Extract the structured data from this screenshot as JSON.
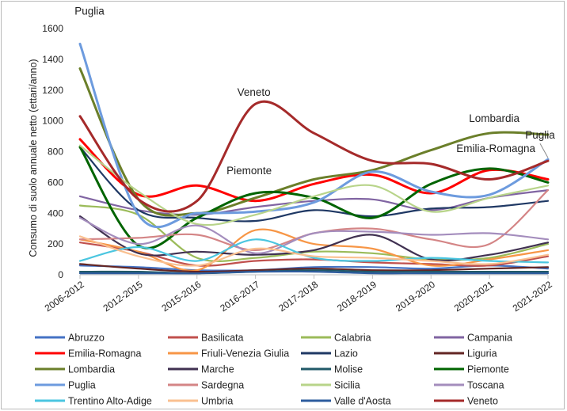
{
  "chart_data": {
    "type": "line",
    "title": "",
    "xlabel": "",
    "ylabel": "Consumo di suolo annuale netto (ettari/anno)",
    "ylim": [
      0,
      1600
    ],
    "yticks": [
      0,
      200,
      400,
      600,
      800,
      1000,
      1200,
      1400,
      1600
    ],
    "grid": false,
    "legend": "bottom",
    "categories": [
      "2006-2012",
      "2012-2015",
      "2015-2016",
      "2016-2017",
      "2017-2018",
      "2018-2019",
      "2019-2020",
      "2020-2021",
      "2021-2022"
    ],
    "series": [
      {
        "name": "Abruzzo",
        "color": "#4472c4",
        "values": [
          60,
          50,
          30,
          30,
          50,
          50,
          40,
          60,
          40
        ]
      },
      {
        "name": "Basilicata",
        "color": "#c0504d",
        "values": [
          210,
          150,
          60,
          90,
          100,
          80,
          70,
          60,
          120
        ]
      },
      {
        "name": "Calabria",
        "color": "#9bbb59",
        "values": [
          450,
          390,
          110,
          110,
          150,
          140,
          100,
          110,
          200
        ]
      },
      {
        "name": "Campania",
        "color": "#8064a2",
        "values": [
          510,
          420,
          390,
          440,
          480,
          490,
          420,
          500,
          550
        ]
      },
      {
        "name": "Emilia-Romagna",
        "color": "#ff0000",
        "values": [
          880,
          520,
          580,
          480,
          590,
          650,
          530,
          680,
          620
        ]
      },
      {
        "name": "Friuli-Venezia Giulia",
        "color": "#f79646",
        "values": [
          230,
          150,
          30,
          290,
          200,
          170,
          60,
          100,
          160
        ]
      },
      {
        "name": "Lazio",
        "color": "#1f3864",
        "values": [
          830,
          420,
          370,
          350,
          420,
          380,
          430,
          440,
          480
        ]
      },
      {
        "name": "Liguria",
        "color": "#632523",
        "values": [
          70,
          40,
          20,
          30,
          40,
          30,
          30,
          40,
          50
        ]
      },
      {
        "name": "Lombardia",
        "color": "#6b7f2a",
        "values": [
          1340,
          490,
          400,
          500,
          620,
          680,
          810,
          920,
          910
        ]
      },
      {
        "name": "Marche",
        "color": "#403151",
        "values": [
          380,
          140,
          150,
          130,
          160,
          260,
          100,
          130,
          210
        ]
      },
      {
        "name": "Molise",
        "color": "#215968",
        "values": [
          20,
          20,
          10,
          20,
          30,
          20,
          20,
          20,
          20
        ]
      },
      {
        "name": "Piemonte",
        "color": "#006400",
        "values": [
          830,
          190,
          370,
          530,
          500,
          370,
          590,
          690,
          600
        ]
      },
      {
        "name": "Puglia",
        "color": "#6d9bde",
        "values": [
          1500,
          390,
          400,
          410,
          470,
          670,
          540,
          520,
          750
        ]
      },
      {
        "name": "Sardegna",
        "color": "#d48586",
        "values": [
          230,
          240,
          260,
          160,
          270,
          300,
          230,
          200,
          550
        ]
      },
      {
        "name": "Sicilia",
        "color": "#b8d48a",
        "values": [
          840,
          540,
          330,
          390,
          510,
          580,
          410,
          500,
          580
        ]
      },
      {
        "name": "Toscana",
        "color": "#a48dbd",
        "values": [
          370,
          200,
          320,
          140,
          270,
          280,
          260,
          270,
          230
        ]
      },
      {
        "name": "Trentino Alto-Adige",
        "color": "#4bc6e0",
        "values": [
          90,
          180,
          90,
          230,
          110,
          90,
          110,
          90,
          80
        ]
      },
      {
        "name": "Umbria",
        "color": "#fac090",
        "values": [
          250,
          120,
          60,
          170,
          120,
          110,
          90,
          70,
          130
        ]
      },
      {
        "name": "Valle d'Aosta",
        "color": "#2e5c9e",
        "values": [
          10,
          10,
          10,
          20,
          20,
          10,
          10,
          10,
          10
        ]
      },
      {
        "name": "Veneto",
        "color": "#a52a2a",
        "values": [
          1030,
          490,
          480,
          1110,
          920,
          740,
          720,
          620,
          740
        ]
      }
    ],
    "annotations": [
      {
        "text": "Puglia",
        "series": "Puglia",
        "x": "2006-2012",
        "y": 1500
      },
      {
        "text": "Veneto",
        "series": "Veneto",
        "x": "2016-2017",
        "y": 1110
      },
      {
        "text": "Piemonte",
        "series": "Piemonte",
        "x": "2016-2017",
        "y": 530
      },
      {
        "text": "Lombardia",
        "series": "Lombardia",
        "x": "2020-2021",
        "y": 920
      },
      {
        "text": "Emilia-Romagna",
        "series": "Emilia-Romagna",
        "x": "2020-2021",
        "y": 680
      },
      {
        "text": "Puglia",
        "series": "Puglia",
        "x": "2021-2022",
        "y": 750
      }
    ]
  }
}
